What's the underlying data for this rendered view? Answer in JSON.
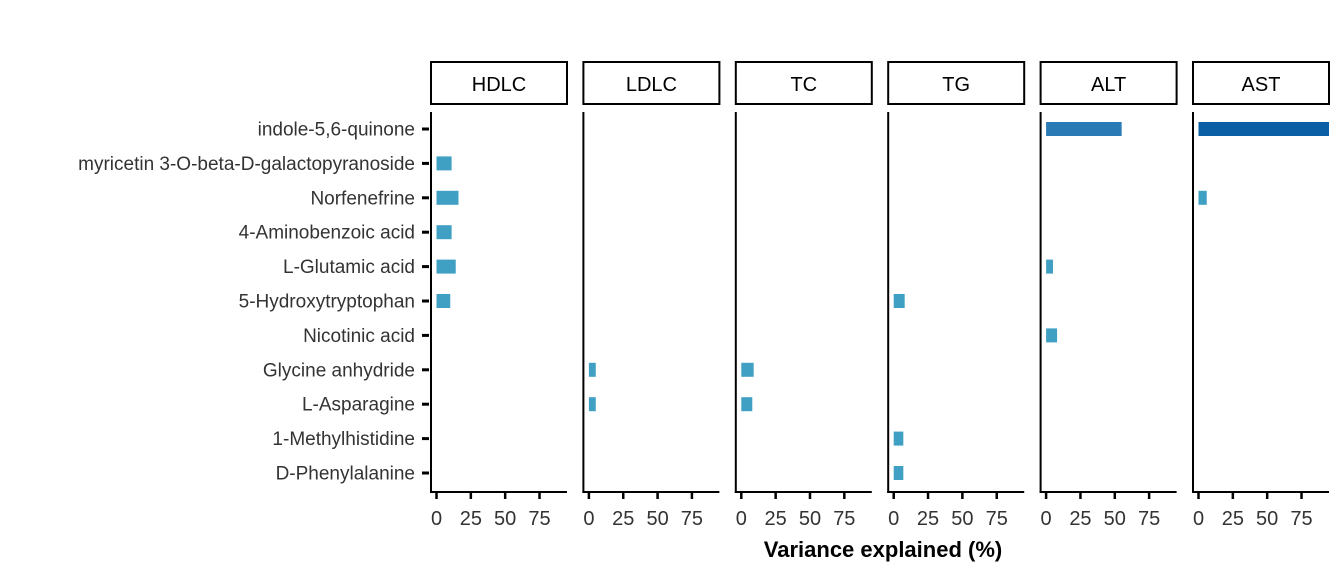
{
  "chart_data": {
    "type": "bar",
    "orientation": "horizontal",
    "faceted": true,
    "xlabel": "Variance explained (%)",
    "ylabel": "",
    "xlim": [
      0,
      95
    ],
    "x_ticks": [
      "0",
      "25",
      "50",
      "75"
    ],
    "grid": false,
    "categories": [
      "indole-5,6-quinone",
      "myricetin 3-O-beta-D-galactopyranoside",
      "Norfenefrine",
      "4-Aminobenzoic acid",
      "L-Glutamic acid",
      "5-Hydroxytryptophan",
      "Nicotinic acid",
      "Glycine anhydride",
      "L-Asparagine",
      "1-Methylhistidine",
      "D-Phenylalanine"
    ],
    "panels": [
      {
        "name": "HDLC",
        "values": [
          null,
          11,
          16,
          11,
          14,
          10,
          null,
          null,
          null,
          null,
          null
        ]
      },
      {
        "name": "LDLC",
        "values": [
          null,
          null,
          null,
          null,
          null,
          null,
          null,
          5,
          5,
          null,
          null
        ]
      },
      {
        "name": "TC",
        "values": [
          null,
          null,
          null,
          null,
          null,
          null,
          null,
          9,
          8,
          null,
          null
        ]
      },
      {
        "name": "TG",
        "values": [
          null,
          null,
          null,
          null,
          null,
          8,
          null,
          null,
          null,
          7,
          7
        ]
      },
      {
        "name": "ALT",
        "values": [
          55,
          null,
          null,
          null,
          5,
          null,
          8,
          null,
          null,
          null,
          null
        ]
      },
      {
        "name": "AST",
        "values": [
          95,
          null,
          6,
          null,
          null,
          null,
          null,
          null,
          null,
          null,
          null
        ]
      }
    ],
    "colors": {
      "low": "#3fa0c4",
      "mid": "#2a7bb5",
      "high": "#0b5fa5"
    }
  }
}
